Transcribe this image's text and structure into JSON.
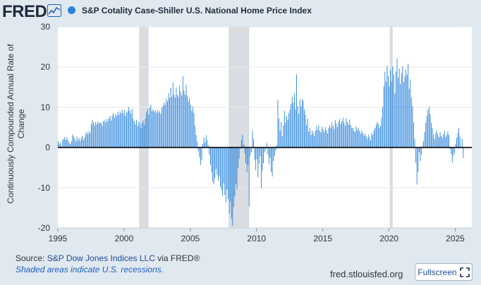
{
  "header": {
    "logo_text": "FRED",
    "logo_icon": "fred-chart-icon",
    "series_label": "S&P Cotality Case-Shiller U.S. National Home Price Index",
    "series_color": "#2a84dc"
  },
  "footer": {
    "source_prefix": "Source: ",
    "source_name": "S&P Dow Jones Indices LLC",
    "source_via": " via FRED®",
    "recession_note": "Shaded areas indicate U.S. recessions.",
    "site": "fred.stlouisfed.org",
    "fullscreen_label": "Fullscreen",
    "fullscreen_icon": "expand-icon"
  },
  "colors": {
    "bars": "#2a84dc",
    "recession": "#d9dde2",
    "zero_line": "#000000",
    "grid": "#e3e7eb"
  },
  "chart_data": {
    "type": "bar",
    "title": "",
    "xlabel": "",
    "ylabel": "Continuously Compounded Annual Rate of Change",
    "ylim": [
      -20,
      30
    ],
    "xlim": [
      1995.0,
      2026.25
    ],
    "yticks": [
      30,
      20,
      10,
      0,
      -10,
      -20
    ],
    "xticks": [
      1995,
      2000,
      2005,
      2010,
      2015,
      2020,
      2025
    ],
    "grid": "horizontal",
    "recessions": [
      [
        2001.17,
        2001.83
      ],
      [
        2007.92,
        2009.42
      ],
      [
        2020.08,
        2020.25
      ]
    ],
    "series": [
      {
        "name": "S&P Cotality Case-Shiller U.S. National Home Price Index",
        "x_start": 1995.0,
        "x_step": 0.08333,
        "values": [
          1.5,
          0.8,
          1.2,
          0.5,
          1.8,
          2.2,
          2.6,
          1.9,
          2.5,
          1.8,
          1.2,
          0.8,
          1.5,
          3.2,
          2.8,
          2.2,
          1.5,
          2.6,
          1.8,
          2.3,
          1.6,
          2.4,
          2.9,
          1.9,
          2.5,
          3.4,
          3.9,
          3.2,
          4.1,
          3.6,
          5.8,
          6.9,
          6.2,
          5.4,
          6.3,
          5.8,
          6.5,
          5.9,
          6.3,
          6.1,
          5.4,
          6.6,
          6.8,
          6.2,
          7.1,
          6.5,
          7.3,
          7.8,
          6.7,
          7.9,
          8.6,
          7.4,
          8.3,
          7.8,
          8.8,
          8.1,
          9.0,
          8.5,
          9.3,
          8.4,
          9.2,
          7.8,
          8.6,
          9.0,
          10.1,
          9.1,
          8.4,
          9.6,
          7.1,
          6.5,
          5.8,
          6.9,
          5.3,
          6.4,
          5.8,
          4.9,
          6.1,
          6.7,
          5.6,
          7.1,
          8.8,
          9.6,
          8.2,
          9.9,
          10.6,
          9.1,
          9.5,
          8.9,
          9.2,
          8.6,
          9.4,
          8.7,
          9.1,
          8.3,
          9.9,
          10.4,
          11.2,
          10.6,
          12.1,
          11.4,
          13.5,
          12.3,
          14.8,
          12.6,
          16.1,
          13.2,
          12.4,
          14.9,
          13.1,
          12.6,
          15.3,
          13.8,
          12.9,
          17.7,
          14.2,
          13.1,
          15.6,
          12.8,
          11.4,
          12.3,
          10.6,
          9.1,
          10.2,
          8.6,
          5.4,
          3.1,
          1.5,
          -0.9,
          -2.4,
          -4.3,
          -3.1,
          0.8,
          2.5,
          1.2,
          3.1,
          1.8,
          0.5,
          -1.8,
          -4.3,
          -6.1,
          -8.4,
          -9.1,
          -7.6,
          -5.4,
          -6.8,
          -8.2,
          -7.1,
          -9.8,
          -10.6,
          -12.1,
          -8.9,
          -11.8,
          -13.6,
          -10.4,
          -12.9,
          -16.3,
          -13.4,
          -17.8,
          -19.4,
          -14.8,
          -12.2,
          -9.1,
          -10.4,
          -5.2,
          -2.8,
          -0.4,
          1.9,
          3.1,
          0.8,
          -1.5,
          -3.9,
          -6.2,
          -4.3,
          -14.6,
          -2.1,
          -1.2,
          4.2,
          2.1,
          -3.1,
          -5.6,
          -2.9,
          -7.4,
          -4.1,
          -2.2,
          -10.1,
          -5.8,
          -3.9,
          -1.2,
          -0.6,
          1.1,
          -1.8,
          -4.2,
          -2.5,
          -6.1,
          -7.2,
          -3.4,
          -2.1,
          -0.8,
          0.6,
          11.8,
          7.2,
          4.1,
          6.3,
          2.8,
          5.4,
          9.1,
          6.1,
          7.8,
          6.9,
          8.6,
          9.4,
          10.8,
          12.6,
          11.1,
          13.4,
          9.6,
          18.2,
          10.3,
          8.4,
          11.9,
          10.2,
          12.1,
          11.6,
          9.4,
          8.1,
          5.6,
          7.1,
          3.9,
          4.8,
          3.1,
          4.2,
          3.6,
          2.9,
          4.1,
          5.2,
          4.4,
          5.6,
          4.1,
          3.8,
          5.2,
          4.6,
          3.9,
          5.1,
          4.3,
          3.5,
          4.8,
          5.6,
          4.9,
          6.2,
          5.4,
          4.6,
          6.8,
          5.9,
          5.1,
          6.4,
          7.1,
          5.8,
          6.6,
          7.4,
          6.1,
          5.4,
          7.2,
          6.3,
          5.7,
          6.9,
          5.6,
          4.8,
          4.9,
          4.1,
          3.8,
          5.2,
          4.4,
          4.9,
          4.1,
          3.4,
          4.2,
          3.6,
          2.9,
          3.4,
          2.8,
          2.1,
          3.2,
          2.5,
          1.8,
          3.6,
          3.1,
          4.2,
          4.8,
          5.6,
          6.3,
          5.9,
          4.9,
          5.4,
          7.4,
          10.1,
          15.2,
          18.8,
          16.4,
          20.3,
          17.8,
          15.1,
          19.2,
          16.3,
          20.2,
          18.1,
          13.4,
          18.9,
          22.1,
          17.3,
          19.6,
          15.8,
          18.4,
          20.1,
          16.2,
          17.6,
          19.3,
          18.1,
          20.8,
          14.6,
          16.9,
          12.4,
          10.3,
          6.2,
          2.1,
          -3.8,
          -9.2,
          -6.1,
          -1.2,
          -3.4,
          -1.8,
          0.4,
          1.6,
          3.8,
          6.2,
          7.9,
          9.4,
          10.1,
          8.3,
          6.1,
          4.8,
          3.2,
          2.1,
          3.6,
          4.2,
          3.1,
          2.5,
          3.8,
          2.9,
          2.4,
          3.3,
          4.1,
          2.6,
          3.2,
          4.0,
          3.1,
          -0.4,
          -1.6,
          -3.8,
          -2.1,
          -1.4,
          0.8,
          2.4,
          3.6,
          4.9,
          2.7,
          0.2,
          2.1,
          -2.6
        ]
      }
    ]
  }
}
